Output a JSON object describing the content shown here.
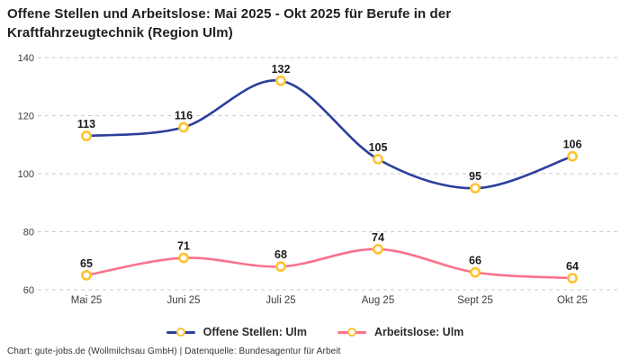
{
  "header": {
    "title_line1": "Offene Stellen und Arbeitslose: Mai 2025 - Okt 2025 für Berufe in der",
    "title_line2": "Kraftfahrzeugtechnik (Region Ulm)"
  },
  "footer": {
    "text": "Chart: gute-jobs.de (Wollmilchsau GmbH) | Datenquelle: Bundesagentur für Arbeit"
  },
  "colors": {
    "grid": "#cbcbcb",
    "tick": "#3d3d3d",
    "data_label": "#1c1c1c",
    "marker_fill": "#ffffff",
    "marker_stroke": "#fcc332"
  },
  "chart_data": {
    "type": "line",
    "title": "Offene Stellen und Arbeitslose: Mai 2025 - Okt 2025 für Berufe in der Kraftfahrzeugtechnik (Region Ulm)",
    "categories": [
      "Mai 25",
      "Juni 25",
      "Juli 25",
      "Aug 25",
      "Sept 25",
      "Okt 25"
    ],
    "series": [
      {
        "name": "Offene Stellen: Ulm",
        "color": "#2b3f9d",
        "values": [
          113,
          116,
          132,
          105,
          95,
          106
        ]
      },
      {
        "name": "Arbeitslose: Ulm",
        "color": "#f8728b",
        "values": [
          65,
          71,
          68,
          74,
          66,
          64
        ]
      }
    ],
    "yticks": [
      140,
      120,
      100,
      80,
      60
    ],
    "ylim": [
      60,
      140
    ],
    "grid": "horizontal-dashed",
    "legend_position": "bottom",
    "smooth": true,
    "data_labels": true
  }
}
